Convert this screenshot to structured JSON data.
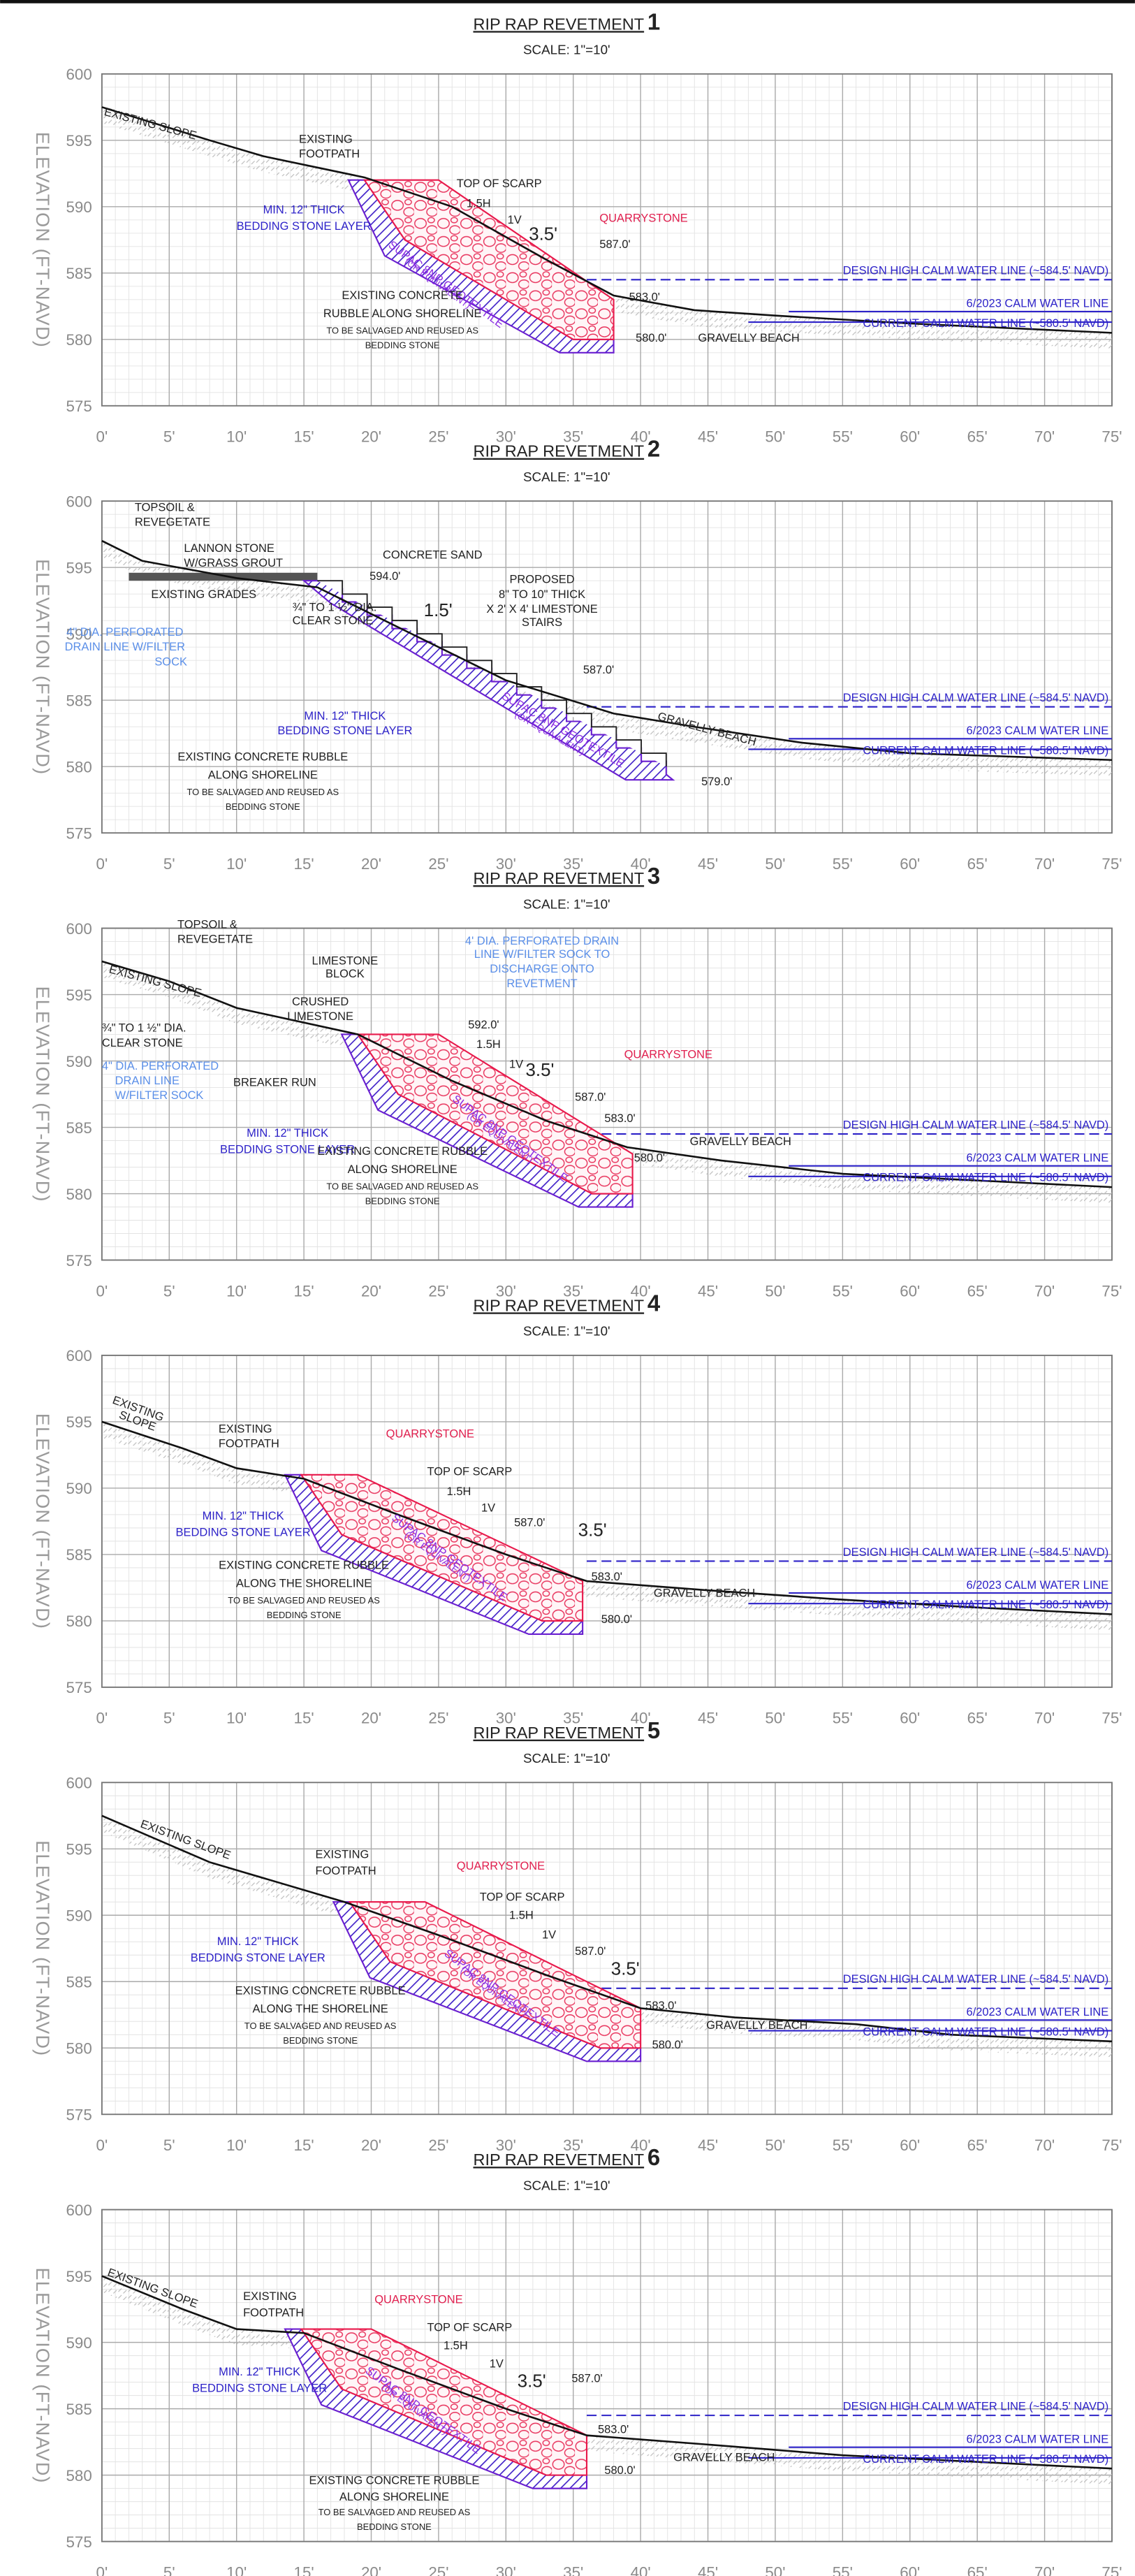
{
  "axes": {
    "ylabel": "ELEVATION (FT-NAVD)",
    "xticks": [
      {
        "value": 0,
        "label": "0'"
      },
      {
        "value": 5,
        "label": "5'"
      },
      {
        "value": 10,
        "label": "10'"
      },
      {
        "value": 15,
        "label": "15'"
      },
      {
        "value": 20,
        "label": "20'"
      },
      {
        "value": 25,
        "label": "25'"
      },
      {
        "value": 30,
        "label": "30'"
      },
      {
        "value": 35,
        "label": "35'"
      },
      {
        "value": 40,
        "label": "40'"
      },
      {
        "value": 45,
        "label": "45'"
      },
      {
        "value": 50,
        "label": "50'"
      },
      {
        "value": 55,
        "label": "55'"
      },
      {
        "value": 60,
        "label": "60'"
      },
      {
        "value": 65,
        "label": "65'"
      },
      {
        "value": 70,
        "label": "70'"
      },
      {
        "value": 75,
        "label": "75'"
      }
    ],
    "yticks": [
      600,
      595,
      590,
      585,
      580,
      575
    ]
  },
  "panels": [
    {
      "title": "RIP RAP REVETMENT",
      "number": "1",
      "scale": "SCALE: 1\"=10'",
      "annotations": [
        "EXISTING SLOPE",
        "EXISTING",
        "FOOTPATH",
        "TOP OF SCARP",
        "1.5H",
        "1V",
        "3.5'",
        "QUARRYSTONE",
        "587.0'",
        "MIN. 12\" THICK",
        "BEDDING STONE LAYER",
        "SUPAC 8NP GEOTEXTILE",
        "(OR EQUIVALENT)",
        "DESIGN HIGH  CALM WATER LINE (~584.5' NAVD)",
        "6/2023 CALM WATER LINE",
        "CURRENT  CALM WATER LINE (~580.5' NAVD)",
        "583.0'",
        "GRAVELLY BEACH",
        "580.0'",
        "EXISTING CONCRETE",
        "RUBBLE ALONG SHORELINE",
        "TO BE SALVAGED AND REUSED AS",
        "BEDDING STONE"
      ]
    },
    {
      "title": "RIP RAP REVETMENT",
      "number": "2",
      "scale": "SCALE: 1\"=10'",
      "annotations": [
        "TOPSOIL &",
        "REVEGETATE",
        "LANNON STONE",
        "W/GRASS GROUT",
        "CONCRETE SAND",
        "594.0'",
        "EXISTING GRADES",
        "PROPOSED",
        "8\" TO 10\" THICK",
        "X 2' X 4' LIMESTONE",
        "STAIRS",
        "1.5'",
        "4\" DIA. PERFORATED",
        "DRAIN LINE W/FILTER",
        "SOCK",
        "¾\" TO 1 ½\" DIA.",
        "CLEAR STONE",
        "587.0'",
        "MIN. 12\" THICK",
        "BEDDING STONE LAYER",
        "SUPAC 8NP GEOTEXTILE",
        "(OR EQUIVALENT)",
        "DESIGN HIGH  CALM WATER LINE (~584.5' NAVD)",
        "6/2023 CALM WATER LINE",
        "CURRENT  CALM WATER LINE (~580.5' NAVD)",
        "GRAVELLY BEACH",
        "579.0'",
        "EXISTING CONCRETE RUBBLE",
        "ALONG SHORELINE",
        "TO BE SALVAGED AND REUSED AS",
        "BEDDING STONE"
      ]
    },
    {
      "title": "RIP RAP REVETMENT",
      "number": "3",
      "scale": "SCALE: 1\"=10'",
      "annotations": [
        "TOPSOIL &",
        "REVEGETATE",
        "EXISTING SLOPE",
        "LIMESTONE",
        "BLOCK",
        "CRUSHED",
        "LIMESTONE",
        "4' DIA. PERFORATED DRAIN",
        "LINE W/FILTER SOCK TO",
        "DISCHARGE ONTO",
        "REVETMENT",
        "¾\" TO 1 ½\" DIA.",
        "CLEAR STONE",
        "4\" DIA. PERFORATED",
        "DRAIN LINE",
        "W/FILTER SOCK",
        "BREAKER RUN",
        "592.0'",
        "1.5H",
        "1V",
        "3.5'",
        "QUARRYSTONE",
        "587.0'",
        "MIN. 12\" THICK",
        "BEDDING STONE LAYER",
        "SUPAC 8NP GEOTEXTILE",
        "(OR EQUIVALENT)",
        "583.0'",
        "DESIGN HIGH  CALM WATER LINE (~584.5' NAVD)",
        "6/2023 CALM WATER LINE",
        "CURRENT  CALM WATER LINE (~580.5' NAVD)",
        "GRAVELLY BEACH",
        "580.0'",
        "EXISTING CONCRETE RUBBLE",
        "ALONG SHORELINE",
        "TO BE SALVAGED AND REUSED AS",
        "BEDDING STONE"
      ]
    },
    {
      "title": "RIP RAP REVETMENT",
      "number": "4",
      "scale": "SCALE: 1\"=10'",
      "annotations": [
        "EXISTING",
        "SLOPE",
        "EXISTING",
        "FOOTPATH",
        "QUARRYSTONE",
        "TOP OF SCARP",
        "1.5H",
        "1V",
        "587.0'",
        "3.5'",
        "MIN. 12\" THICK",
        "BEDDING STONE LAYER",
        "SUPAC 8NP GEOTEXTILE",
        "(OR EQUIVALENT)",
        "EXISTING CONCRETE RUBBLE",
        "ALONG THE SHORELINE",
        "TO BE SALVAGED AND REUSED AS",
        "BEDDING STONE",
        "DESIGN HIGH  CALM WATER LINE (~584.5' NAVD)",
        "6/2023 CALM WATER LINE",
        "CURRENT  CALM WATER LINE (~580.5' NAVD)",
        "583.0'",
        "GRAVELLY BEACH",
        "580.0'"
      ]
    },
    {
      "title": "RIP RAP REVETMENT",
      "number": "5",
      "scale": "SCALE: 1\"=10'",
      "annotations": [
        "EXISTING SLOPE",
        "EXISTING",
        "FOOTPATH",
        "QUARRYSTONE",
        "TOP OF SCARP",
        "1.5H",
        "1V",
        "587.0'",
        "3.5'",
        "MIN. 12\" THICK",
        "BEDDING STONE LAYER",
        "SUPAC 8NP GEOTEXTILE",
        "(OR EQUIVALENT)",
        "EXISTING CONCRETE RUBBLE",
        "ALONG THE SHORELINE",
        "TO BE SALVAGED AND REUSED AS",
        "BEDDING STONE",
        "DESIGN HIGH  CALM WATER LINE (~584.5' NAVD)",
        "6/2023 CALM WATER LINE",
        "CURRENT  CALM WATER LINE (~580.5' NAVD)",
        "583.0'",
        "GRAVELLY BEACH",
        "580.0'"
      ]
    },
    {
      "title": "RIP RAP REVETMENT",
      "number": "6",
      "scale": "SCALE: 1\"=10'",
      "annotations": [
        "EXISTING SLOPE",
        "EXISTING",
        "FOOTPATH",
        "QUARRYSTONE",
        "TOP OF SCARP",
        "1.5H",
        "1V",
        "3.5'",
        "587.0'",
        "MIN. 12\" THICK",
        "BEDDING STONE LAYER",
        "SUPAC 8NP GEOTEXTILE",
        "(OR EQUIVALENT)",
        "DESIGN HIGH  CALM WATER LINE (~584.5' NAVD)",
        "6/2023 CALM WATER LINE",
        "CURRENT  CALM WATER LINE (~580.5' NAVD)",
        "583.0'",
        "GRAVELLY BEACH",
        "580.0'",
        "EXISTING CONCRETE RUBBLE",
        "ALONG SHORELINE",
        "TO BE SALVAGED AND REUSED AS",
        "BEDDING STONE"
      ]
    }
  ]
}
